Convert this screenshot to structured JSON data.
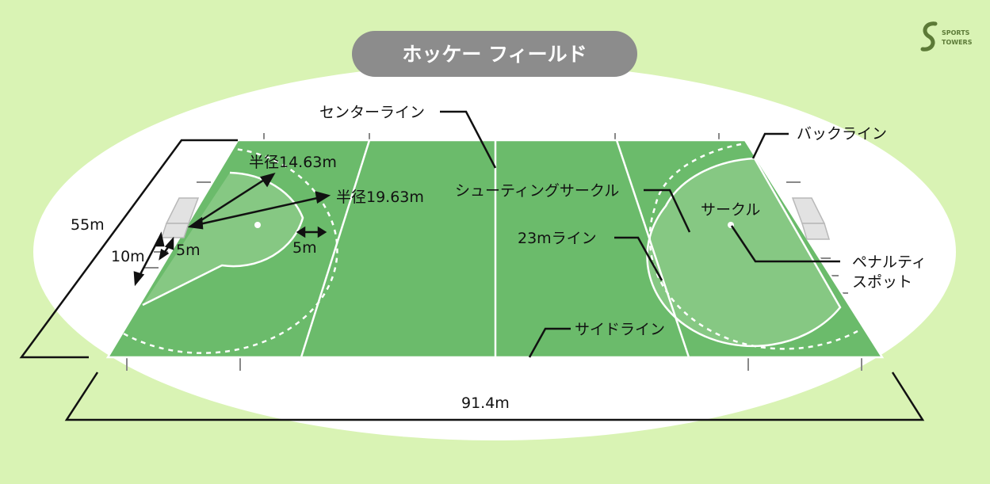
{
  "title": "ホッケー フィールド",
  "colors": {
    "background": "#d9f3b4",
    "ellipse": "#ffffff",
    "field": "#6bbb6b",
    "circle_fill": "#86c883",
    "lines": "#ffffff",
    "title_bg": "#8c8c8c",
    "leader": "#111111",
    "goal": "#e2e2e2"
  },
  "labels": {
    "center_line": "センターライン",
    "back_line": "バックライン",
    "shooting_circle": "シューティングサークル",
    "circle": "サークル",
    "line_23m": "23mライン",
    "penalty_spot_1": "ペナルティ",
    "penalty_spot_2": "スポット",
    "side_line": "サイドライン",
    "radius_1": "半径14.63m",
    "radius_2": "半径19.63m",
    "dim_55m": "55m",
    "dim_10m": "10m",
    "dim_5m_a": "5m",
    "dim_5m_b": "5m",
    "dim_914m": "91.4m"
  },
  "logo": {
    "text": "SPORTS TOWERS",
    "icon": "sports-towers-logo-icon"
  }
}
